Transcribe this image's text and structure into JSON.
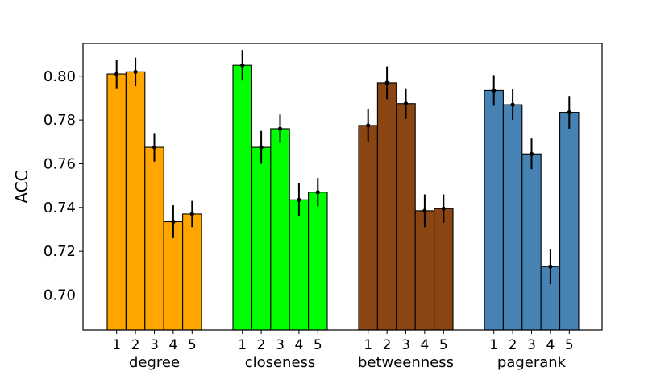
{
  "chart_data": {
    "type": "bar",
    "title": "",
    "ylabel": "ACC",
    "xlabel": "",
    "ylim": [
      0.684,
      0.815
    ],
    "yticks": [
      0.7,
      0.72,
      0.74,
      0.76,
      0.78,
      0.8
    ],
    "ytick_labels": [
      "0.70",
      "0.72",
      "0.74",
      "0.76",
      "0.78",
      "0.80"
    ],
    "categories": [
      "1",
      "2",
      "3",
      "4",
      "5"
    ],
    "grid": false,
    "legend": "none",
    "groups": [
      {
        "name": "degree",
        "color": "#FFA500",
        "values": [
          0.801,
          0.802,
          0.7675,
          0.7335,
          0.737
        ],
        "errors": [
          0.0065,
          0.0065,
          0.0065,
          0.0075,
          0.006
        ]
      },
      {
        "name": "closeness",
        "color": "#00FF00",
        "values": [
          0.805,
          0.7675,
          0.776,
          0.7435,
          0.747
        ],
        "errors": [
          0.007,
          0.0075,
          0.0065,
          0.0075,
          0.0065
        ]
      },
      {
        "name": "betweenness",
        "color": "#8B4513",
        "values": [
          0.7775,
          0.797,
          0.7875,
          0.7385,
          0.7395
        ],
        "errors": [
          0.0075,
          0.0075,
          0.007,
          0.0075,
          0.0065
        ]
      },
      {
        "name": "pagerank",
        "color": "#4682B4",
        "values": [
          0.7935,
          0.787,
          0.7645,
          0.713,
          0.7835
        ],
        "errors": [
          0.007,
          0.007,
          0.007,
          0.008,
          0.0075
        ]
      }
    ]
  }
}
